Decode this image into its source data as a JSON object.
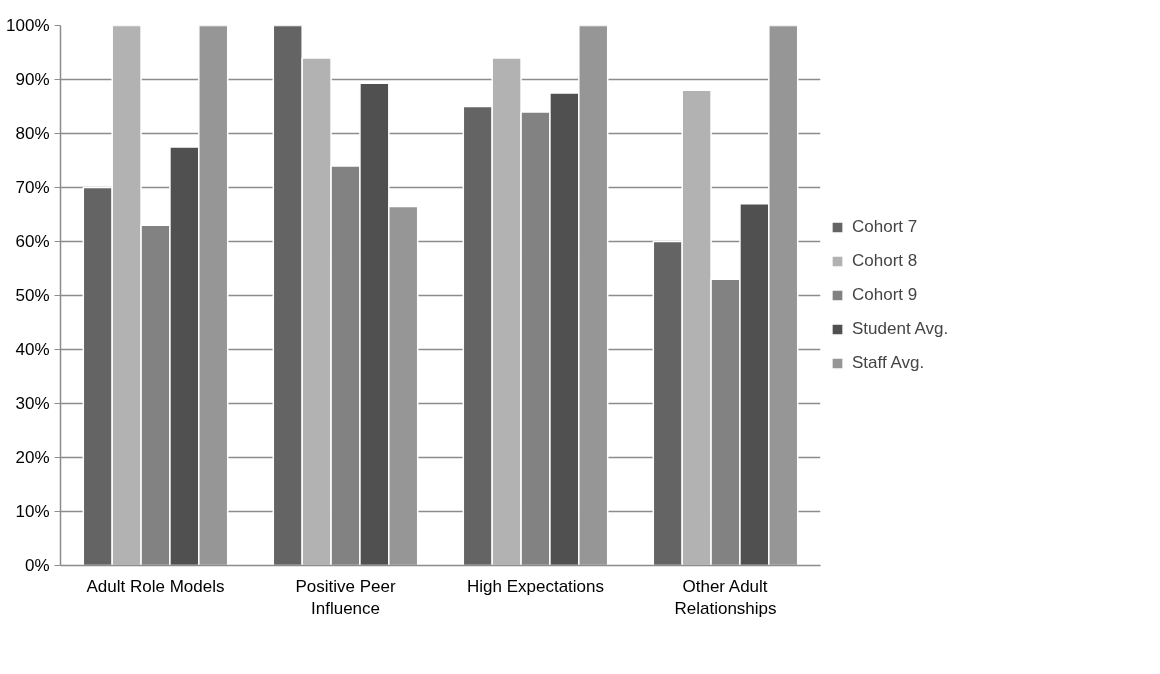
{
  "chart_data": {
    "type": "bar",
    "categories": [
      "Adult Role Models",
      "Positive Peer\nInfluence",
      "High Expectations",
      "Other Adult\nRelationships"
    ],
    "series": [
      {
        "name": "Cohort 7",
        "color": "#646464",
        "values": [
          70,
          100,
          85,
          60
        ]
      },
      {
        "name": "Cohort 8",
        "color": "#b2b2b2",
        "values": [
          100,
          94,
          94,
          88
        ]
      },
      {
        "name": "Cohort 9",
        "color": "#828282",
        "values": [
          63,
          74,
          84,
          53
        ]
      },
      {
        "name": "Student Avg.",
        "color": "#505050",
        "values": [
          77.5,
          89.3,
          87.5,
          67
        ]
      },
      {
        "name": "Staff Avg.",
        "color": "#969696",
        "values": [
          100,
          66.5,
          100,
          100
        ]
      }
    ],
    "ylim": [
      0,
      100
    ],
    "yticks": [
      {
        "value": 0,
        "label": "0%"
      },
      {
        "value": 10,
        "label": "10%"
      },
      {
        "value": 20,
        "label": "20%"
      },
      {
        "value": 30,
        "label": "30%"
      },
      {
        "value": 40,
        "label": "40%"
      },
      {
        "value": 50,
        "label": "50%"
      },
      {
        "value": 60,
        "label": "60%"
      },
      {
        "value": 70,
        "label": "70%"
      },
      {
        "value": 80,
        "label": "80%"
      },
      {
        "value": 90,
        "label": "90%"
      },
      {
        "value": 100,
        "label": "100%"
      }
    ],
    "grid": "y",
    "legend": "right"
  }
}
